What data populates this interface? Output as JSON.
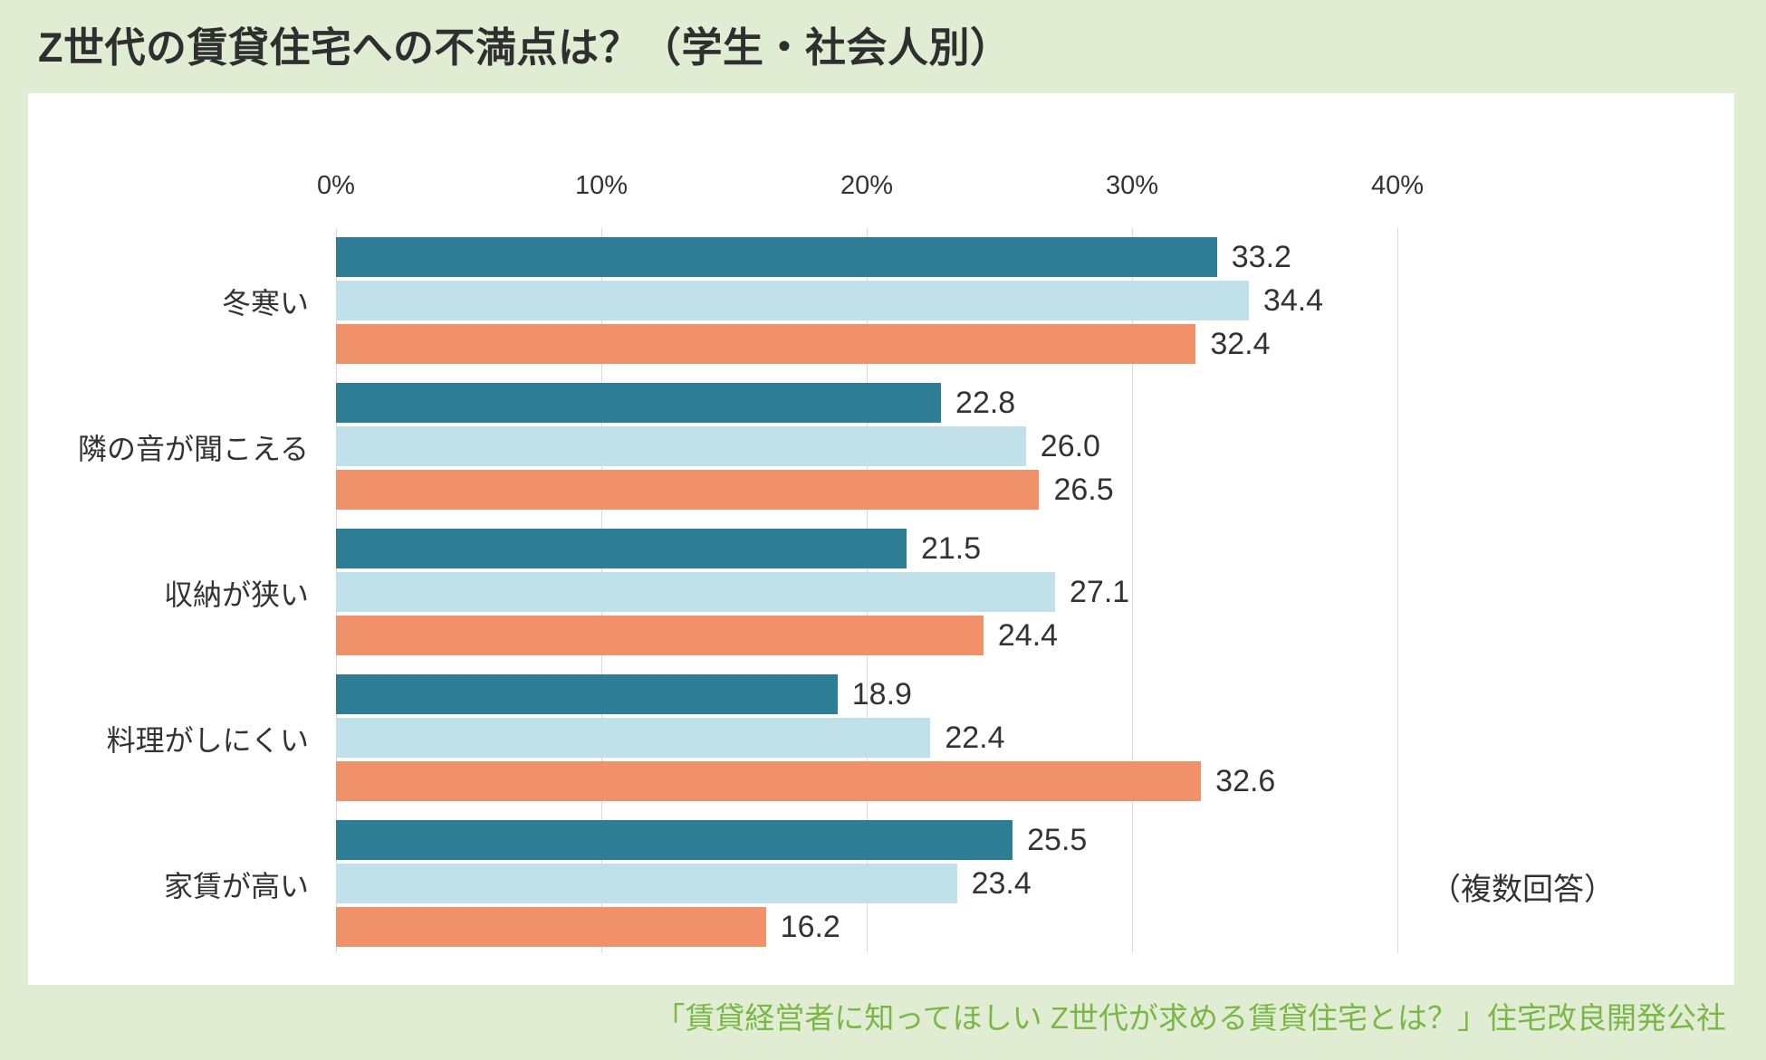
{
  "title": "Z世代の賃貸住宅への不満点は？（学生・社会人別）",
  "annotation": "（複数回答）",
  "source": "「賃貸経営者に知ってほしい Z世代が求める賃貸住宅とは？」住宅改良開発公社",
  "chart_data": {
    "type": "bar",
    "orientation": "horizontal",
    "title": "Z世代の賃貸住宅への不満点は？（学生・社会人別）",
    "categories": [
      "冬寒い",
      "隣の音が聞こえる",
      "収納が狭い",
      "料理がしにくい",
      "家賃が高い"
    ],
    "series": [
      {
        "name": "dark-teal-bar",
        "color": "#2d7d95",
        "values": [
          33.2,
          22.8,
          21.5,
          18.9,
          25.5
        ]
      },
      {
        "name": "light-blue-bar",
        "color": "#c0e1e9",
        "values": [
          34.4,
          26.0,
          27.1,
          22.4,
          23.4
        ]
      },
      {
        "name": "orange-bar",
        "color": "#f09169",
        "values": [
          32.4,
          26.5,
          24.4,
          32.6,
          16.2
        ]
      }
    ],
    "x_ticks": [
      "0%",
      "10%",
      "20%",
      "30%",
      "40%"
    ],
    "x_tick_values": [
      0,
      10,
      20,
      30,
      40
    ],
    "xlim": [
      0,
      52
    ],
    "grid": true,
    "legend": "none",
    "value_labels": true,
    "value_label_format": "0.0"
  },
  "colors": {
    "background": "#e0edd3",
    "panel": "#ffffff",
    "grid": "#d9d9d9",
    "title_text": "#2f2f2f",
    "body_text": "#333333",
    "source_text": "#7ab648"
  }
}
